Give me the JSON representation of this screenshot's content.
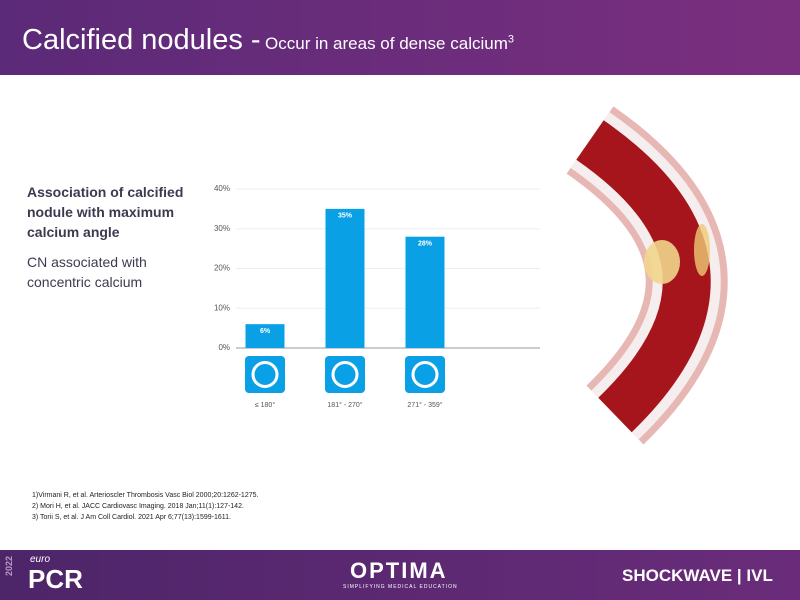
{
  "header": {
    "title": "Calcified nodules -",
    "subtitle": "Occur in areas of dense calcium",
    "subtitle_ref": "3"
  },
  "lead": "Association of calcified nodule with maximum calcium angle",
  "note": "CN associated with concentric calcium",
  "references": [
    "1)Virmani R, et al. Arterioscler Thrombosis Vasc Biol 2000;20:1262-1275.",
    "2) Mori H, et al. JACC Cardiovasc Imaging. 2018 Jan;11(1):127-142.",
    "3) Torii S, et al. J Am Coll Cardiol. 2021 Apr 6;77(13):1599-1611."
  ],
  "footer": {
    "year": "2022",
    "euro": "euro",
    "pcr": "PCR",
    "optima": "OPTIMA",
    "optima_tagline": "SIMPLIFYING MEDICAL EDUCATION",
    "brand": "SHOCKWAVE | IVL"
  },
  "chart_data": {
    "type": "bar",
    "categories": [
      "≤ 180°",
      "181° - 270°",
      "271° - 359°"
    ],
    "values": [
      6,
      35,
      28
    ],
    "value_labels": [
      "6%",
      "35%",
      "28%"
    ],
    "color": "#0aa0e6",
    "ylim": [
      0,
      40
    ],
    "yticks": [
      {
        "value": 0,
        "label": "0%"
      },
      {
        "value": 10,
        "label": "10%"
      },
      {
        "value": 20,
        "label": "20%"
      },
      {
        "value": 30,
        "label": "30%"
      },
      {
        "value": 40,
        "label": "40%"
      }
    ],
    "grid": true
  }
}
